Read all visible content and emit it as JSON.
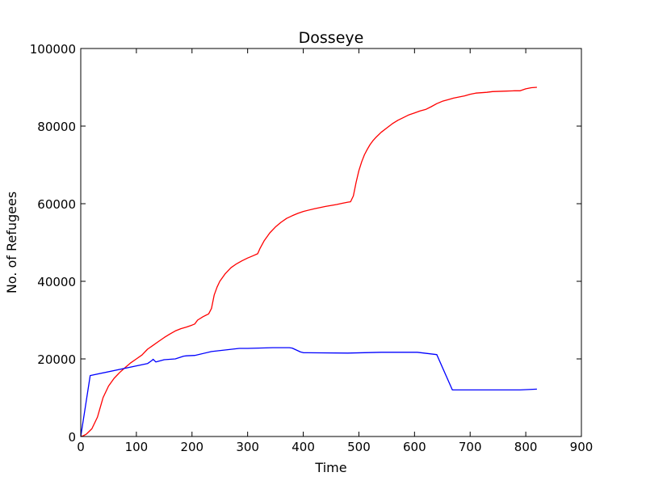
{
  "chart_data": {
    "type": "line",
    "title": "Dosseye",
    "xlabel": "Time",
    "ylabel": "No. of Refugees",
    "xlim": [
      0,
      900
    ],
    "ylim": [
      0,
      100000
    ],
    "xticks": [
      0,
      100,
      200,
      300,
      400,
      500,
      600,
      700,
      800,
      900
    ],
    "yticks": [
      0,
      20000,
      40000,
      60000,
      80000,
      100000
    ],
    "grid": false,
    "legend": "none",
    "series": [
      {
        "color": "#ff0000",
        "x": [
          0,
          5,
          10,
          20,
          30,
          40,
          50,
          60,
          70,
          80,
          90,
          100,
          110,
          120,
          130,
          140,
          150,
          160,
          170,
          180,
          190,
          200,
          205,
          210,
          220,
          230,
          235,
          240,
          245,
          250,
          260,
          270,
          280,
          290,
          300,
          310,
          318,
          322,
          330,
          340,
          350,
          360,
          370,
          380,
          390,
          400,
          420,
          440,
          460,
          470,
          480,
          485,
          490,
          495,
          500,
          505,
          510,
          515,
          520,
          525,
          530,
          540,
          550,
          560,
          570,
          580,
          590,
          600,
          610,
          620,
          630,
          640,
          650,
          660,
          670,
          680,
          690,
          700,
          710,
          720,
          730,
          740,
          760,
          780,
          790,
          800,
          810,
          820
        ],
        "y": [
          0,
          200,
          600,
          2000,
          5000,
          10000,
          13000,
          15000,
          16500,
          17800,
          19000,
          20000,
          21000,
          22500,
          23500,
          24500,
          25500,
          26400,
          27200,
          27800,
          28200,
          28700,
          29000,
          30000,
          30900,
          31600,
          33000,
          36500,
          38500,
          40000,
          42000,
          43500,
          44500,
          45300,
          46000,
          46600,
          47100,
          48400,
          50500,
          52500,
          54000,
          55200,
          56200,
          56900,
          57500,
          58000,
          58700,
          59300,
          59800,
          60100,
          60400,
          60500,
          62000,
          65500,
          68500,
          70800,
          72600,
          74000,
          75200,
          76200,
          77000,
          78400,
          79500,
          80600,
          81500,
          82200,
          82900,
          83400,
          83900,
          84300,
          85000,
          85800,
          86400,
          86800,
          87200,
          87500,
          87800,
          88200,
          88500,
          88600,
          88700,
          88900,
          89000,
          89100,
          89100,
          89600,
          89900,
          90000
        ]
      },
      {
        "color": "#0000ff",
        "x": [
          0,
          17,
          120,
          128,
          130,
          135,
          140,
          150,
          170,
          185,
          190,
          205,
          235,
          285,
          300,
          320,
          345,
          375,
          380,
          395,
          400,
          480,
          540,
          605,
          640,
          668,
          790,
          820
        ],
        "y": [
          0,
          15700,
          18800,
          19600,
          19900,
          19200,
          19400,
          19800,
          20000,
          20700,
          20800,
          20900,
          21900,
          22700,
          22700,
          22800,
          22900,
          22900,
          22800,
          21800,
          21600,
          21500,
          21700,
          21700,
          21100,
          12000,
          12000,
          12200
        ]
      }
    ]
  }
}
